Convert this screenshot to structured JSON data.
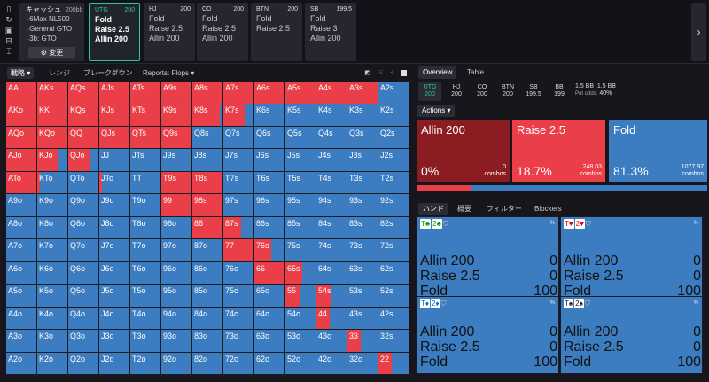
{
  "header": {
    "info": {
      "title": "キャッシュ",
      "stack": "200bb",
      "lines": [
        "6Max NL500",
        "General GTO",
        "3b: GTO"
      ],
      "change_label": "変更"
    },
    "positions": [
      {
        "name": "UTG",
        "stack": "200",
        "actions": [
          "Fold",
          "Raise 2.5",
          "Allin 200"
        ],
        "active": true
      },
      {
        "name": "HJ",
        "stack": "200",
        "actions": [
          "Fold",
          "Raise 2.5",
          "Allin 200"
        ]
      },
      {
        "name": "CO",
        "stack": "200",
        "actions": [
          "Fold",
          "Raise 2.5",
          "Allin 200"
        ]
      },
      {
        "name": "BTN",
        "stack": "200",
        "actions": [
          "Fold",
          "Raise 2.5"
        ]
      },
      {
        "name": "SB",
        "stack": "199.5",
        "actions": [
          "Fold",
          "Raise 3",
          "Allin 200"
        ]
      }
    ],
    "next_icon": "chevron-right-icon"
  },
  "left_tabs": {
    "strategy": "戦略",
    "range": "レンジ",
    "breakdown": "ブレークダウン",
    "reports": "Reports: Flops"
  },
  "ranks": [
    "A",
    "K",
    "Q",
    "J",
    "T",
    "9",
    "8",
    "7",
    "6",
    "5",
    "4",
    "3",
    "2"
  ],
  "raise_fracs": [
    [
      1,
      1,
      1,
      1,
      1,
      1,
      1,
      1,
      1,
      1,
      1,
      1,
      0
    ],
    [
      1,
      1,
      1,
      1,
      1,
      1,
      0.9,
      0.7,
      0,
      0,
      0,
      0,
      0
    ],
    [
      1,
      1,
      1,
      1,
      1,
      1,
      0,
      0,
      0,
      0,
      0,
      0,
      0
    ],
    [
      1,
      0.7,
      0.7,
      0,
      0,
      0,
      0,
      0,
      0,
      0,
      0,
      0,
      0
    ],
    [
      1,
      0.1,
      0,
      0.1,
      0,
      1,
      1,
      0,
      0,
      0,
      0,
      0,
      0
    ],
    [
      0,
      0,
      0,
      0,
      0,
      1,
      1,
      0,
      0,
      0,
      0,
      0,
      0
    ],
    [
      0,
      0,
      0,
      0,
      0,
      0,
      1,
      0.6,
      0,
      0,
      0,
      0,
      0
    ],
    [
      0,
      0,
      0,
      0,
      0,
      0,
      0,
      1,
      0.55,
      0,
      0,
      0,
      0
    ],
    [
      0,
      0,
      0,
      0,
      0,
      0,
      0,
      0,
      1,
      0.55,
      0,
      0,
      0
    ],
    [
      0,
      0,
      0,
      0,
      0,
      0,
      0,
      0,
      0,
      0.5,
      0.5,
      0,
      0
    ],
    [
      0,
      0,
      0,
      0,
      0,
      0,
      0,
      0,
      0,
      0,
      0.45,
      0,
      0
    ],
    [
      0,
      0,
      0,
      0,
      0,
      0,
      0,
      0,
      0,
      0,
      0,
      0.45,
      0
    ],
    [
      0,
      0,
      0,
      0,
      0,
      0,
      0,
      0,
      0,
      0,
      0,
      0,
      0.45
    ]
  ],
  "right": {
    "tabs": {
      "overview": "Overview",
      "table": "Table"
    },
    "stacks": [
      {
        "pos": "UTG",
        "val": "200",
        "active": true
      },
      {
        "pos": "HJ",
        "val": "200"
      },
      {
        "pos": "CO",
        "val": "200"
      },
      {
        "pos": "BTN",
        "val": "200"
      },
      {
        "pos": "SB",
        "val": "199.5"
      },
      {
        "pos": "BB",
        "val": "199"
      }
    ],
    "pot": {
      "line1a": "1.5 BB",
      "line1b": "1.5 BB",
      "label": "Pot odds:",
      "odds": "40%"
    },
    "actions_label": "Actions",
    "actions": [
      {
        "name": "Allin 200",
        "pct": "0%",
        "combos": "0",
        "combos_label": "combos",
        "color": "#8b1c22"
      },
      {
        "name": "Raise 2.5",
        "pct": "18.7%",
        "combos": "248.03",
        "combos_label": "combos",
        "color": "#ea3f48"
      },
      {
        "name": "Fold",
        "pct": "81.3%",
        "combos": "1077.97",
        "combos_label": "combos",
        "color": "#3c7cc0"
      }
    ],
    "raise_share": 0.187,
    "bottom_tabs": {
      "hand": "ハンド",
      "summary": "概要",
      "filter": "フィルター",
      "blockers": "Blockers"
    },
    "hands": [
      {
        "c1": "T♣",
        "c2": "2♣",
        "pct": "%",
        "rows": [
          {
            "a": "Allin 200",
            "v": "0"
          },
          {
            "a": "Raise 2.5",
            "v": "0"
          },
          {
            "a": "Fold",
            "v": "100"
          }
        ]
      },
      {
        "c1": "T♥",
        "c2": "2♥",
        "pct": "%",
        "rows": [
          {
            "a": "Allin 200",
            "v": "0"
          },
          {
            "a": "Raise 2.5",
            "v": "0"
          },
          {
            "a": "Fold",
            "v": "100"
          }
        ]
      },
      {
        "c1": "T♦",
        "c2": "2♦",
        "pct": "%",
        "rows": [
          {
            "a": "Allin 200",
            "v": "0"
          },
          {
            "a": "Raise 2.5",
            "v": "0"
          },
          {
            "a": "Fold",
            "v": "100"
          }
        ]
      },
      {
        "c1": "T♠",
        "c2": "2♠",
        "pct": "%",
        "rows": [
          {
            "a": "Allin 200",
            "v": "0"
          },
          {
            "a": "Raise 2.5",
            "v": "0"
          },
          {
            "a": "Fold",
            "v": "100"
          }
        ]
      }
    ]
  }
}
